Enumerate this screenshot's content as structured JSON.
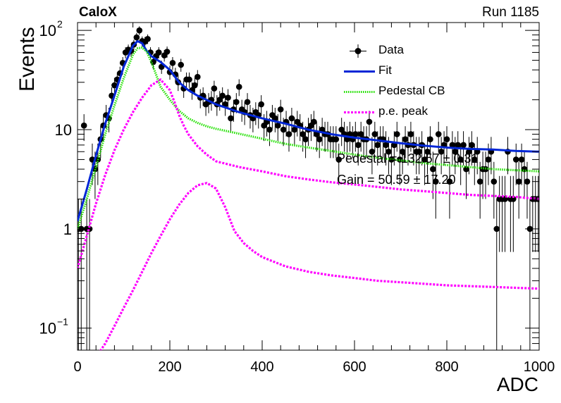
{
  "header": {
    "title": "CaloX",
    "run": "Run 1185"
  },
  "overlay": {
    "line1": "Pedestal = 132.57 ± 0.31",
    "line2": "Gain = 50.59 ± 17.20"
  },
  "chart_data": {
    "type": "scatter",
    "xlabel": "ADC",
    "ylabel": "Events",
    "xlim": [
      0,
      1000
    ],
    "ylim": [
      0.06,
      120
    ],
    "yscale": "log",
    "legend_position": "top-right",
    "x_ticks": [
      0,
      200,
      400,
      600,
      800,
      1000
    ],
    "x_tick_labels": [
      "0",
      "200",
      "400",
      "600",
      "800",
      "1000"
    ],
    "y_ticks": [
      0.1,
      1,
      10,
      100
    ],
    "series": [
      {
        "name": "Data",
        "kind": "points",
        "color": "#000000",
        "x": [
          2,
          8,
          14,
          20,
          26,
          32,
          38,
          44,
          50,
          56,
          62,
          68,
          74,
          80,
          86,
          92,
          98,
          104,
          110,
          116,
          122,
          128,
          134,
          140,
          146,
          152,
          158,
          164,
          170,
          176,
          182,
          188,
          194,
          200,
          206,
          212,
          218,
          224,
          230,
          236,
          242,
          248,
          254,
          260,
          266,
          272,
          278,
          284,
          290,
          296,
          302,
          308,
          314,
          320,
          326,
          332,
          338,
          344,
          350,
          356,
          362,
          368,
          374,
          380,
          386,
          392,
          398,
          404,
          410,
          416,
          422,
          428,
          434,
          440,
          446,
          452,
          458,
          464,
          470,
          476,
          482,
          488,
          494,
          500,
          506,
          512,
          518,
          524,
          530,
          536,
          542,
          548,
          554,
          560,
          566,
          572,
          578,
          584,
          590,
          596,
          602,
          608,
          614,
          620,
          626,
          632,
          638,
          644,
          650,
          656,
          662,
          668,
          674,
          680,
          686,
          692,
          698,
          704,
          710,
          716,
          722,
          728,
          734,
          740,
          746,
          752,
          758,
          764,
          770,
          776,
          782,
          788,
          794,
          800,
          806,
          812,
          818,
          824,
          830,
          836,
          842,
          848,
          854,
          860,
          866,
          872,
          878,
          884,
          890,
          896,
          902,
          908,
          914,
          920,
          926,
          932,
          938,
          944,
          950,
          956,
          962,
          968,
          974,
          980,
          986,
          992,
          998
        ],
        "y": [
          1,
          1,
          11,
          1,
          1,
          5,
          4,
          5,
          8,
          11,
          14,
          13,
          22,
          28,
          32,
          37,
          47,
          60,
          64,
          62,
          72,
          85,
          100,
          78,
          77,
          82,
          60,
          48,
          55,
          60,
          43,
          56,
          61,
          38,
          47,
          36,
          30,
          45,
          26,
          32,
          32,
          25,
          28,
          34,
          21,
          22,
          18,
          19,
          20,
          26,
          18,
          20,
          22,
          18,
          21,
          13,
          16,
          19,
          27,
          16,
          15,
          19,
          14,
          13,
          15,
          14,
          18,
          11,
          12,
          10,
          14,
          13,
          11,
          16,
          10,
          12,
          9,
          13,
          10,
          12,
          11,
          9,
          8,
          10,
          11,
          12,
          9,
          8,
          10,
          9,
          9,
          8,
          8,
          8,
          5,
          10,
          9,
          8,
          9,
          8,
          9,
          7,
          9,
          8,
          8,
          12,
          6,
          9,
          7,
          8,
          8,
          7,
          6,
          5,
          7,
          9,
          5,
          6,
          8,
          7,
          9,
          7,
          6,
          6,
          7,
          5,
          6,
          8,
          4,
          3,
          9,
          6,
          7,
          8,
          3,
          7,
          6,
          7,
          5,
          7,
          4,
          6,
          7,
          5,
          6,
          3,
          4,
          4,
          5,
          6,
          3,
          1,
          2,
          2,
          2,
          6,
          2,
          2,
          5,
          3,
          5,
          4,
          3,
          1,
          2,
          2,
          2
        ]
      },
      {
        "name": "Fit",
        "kind": "line",
        "color": "#0026d6",
        "dash": "solid",
        "x": [
          0,
          20,
          40,
          60,
          80,
          100,
          120,
          130,
          140,
          150,
          160,
          180,
          200,
          220,
          240,
          260,
          300,
          350,
          400,
          450,
          500,
          550,
          600,
          650,
          700,
          750,
          800,
          850,
          900,
          950,
          1000
        ],
        "y": [
          1.2,
          2.5,
          5.5,
          11.5,
          22,
          43,
          70,
          78,
          74,
          62,
          55,
          48,
          40,
          30,
          25,
          22,
          18,
          15,
          13,
          11.5,
          10,
          9,
          8.3,
          7.8,
          7.3,
          6.9,
          6.6,
          6.4,
          6.3,
          6.1,
          6.0
        ]
      },
      {
        "name": "Pedestal CB",
        "kind": "line",
        "color": "#22e000",
        "dash": "dotted",
        "x": [
          0,
          20,
          40,
          60,
          80,
          100,
          120,
          130,
          140,
          150,
          160,
          170,
          180,
          200,
          220,
          240,
          260,
          280,
          300,
          350,
          400,
          450,
          500,
          550,
          600,
          650,
          700,
          750,
          800,
          850,
          900,
          950,
          1000
        ],
        "y": [
          1.0,
          2.0,
          4.2,
          9.0,
          17.5,
          33,
          57,
          66,
          67,
          61,
          48,
          36,
          27,
          20,
          15.5,
          13,
          11.7,
          10.8,
          10.2,
          9.1,
          8.1,
          7.2,
          6.6,
          6.1,
          5.6,
          5.2,
          4.9,
          4.6,
          4.4,
          4.2,
          4.0,
          3.9,
          3.8
        ]
      },
      {
        "name": "p.e. peak",
        "kind": "line",
        "color": "#ff00ff",
        "dash": "dotted",
        "x": [
          0,
          20,
          40,
          60,
          80,
          100,
          120,
          140,
          160,
          180,
          200,
          210,
          220,
          230,
          240,
          250,
          260,
          280,
          300,
          350,
          400,
          450,
          500,
          550,
          600,
          650,
          700,
          750,
          800,
          850,
          900,
          950,
          1000
        ],
        "y": [
          0.4,
          0.85,
          1.8,
          3.5,
          6.2,
          10,
          15,
          21,
          28,
          32,
          25,
          19,
          14,
          11,
          9,
          7.8,
          6.8,
          5.6,
          4.8,
          4.2,
          3.8,
          3.4,
          3.15,
          2.95,
          2.8,
          2.65,
          2.5,
          2.4,
          2.3,
          2.2,
          2.15,
          2.1,
          2.0
        ]
      },
      {
        "name": "",
        "kind": "line",
        "color": "#ff00ff",
        "dash": "dotted",
        "x": [
          45,
          60,
          80,
          100,
          120,
          140,
          160,
          180,
          200,
          220,
          240,
          260,
          280,
          300,
          320,
          340,
          360,
          380,
          400,
          450,
          500,
          550,
          600,
          650,
          700,
          750,
          800,
          850,
          900,
          950,
          1000
        ],
        "y": [
          0.055,
          0.07,
          0.105,
          0.16,
          0.24,
          0.37,
          0.57,
          0.85,
          1.25,
          1.75,
          2.3,
          2.75,
          2.9,
          2.55,
          1.65,
          0.95,
          0.72,
          0.6,
          0.52,
          0.42,
          0.37,
          0.34,
          0.32,
          0.3,
          0.29,
          0.28,
          0.27,
          0.265,
          0.26,
          0.255,
          0.25
        ]
      }
    ]
  }
}
